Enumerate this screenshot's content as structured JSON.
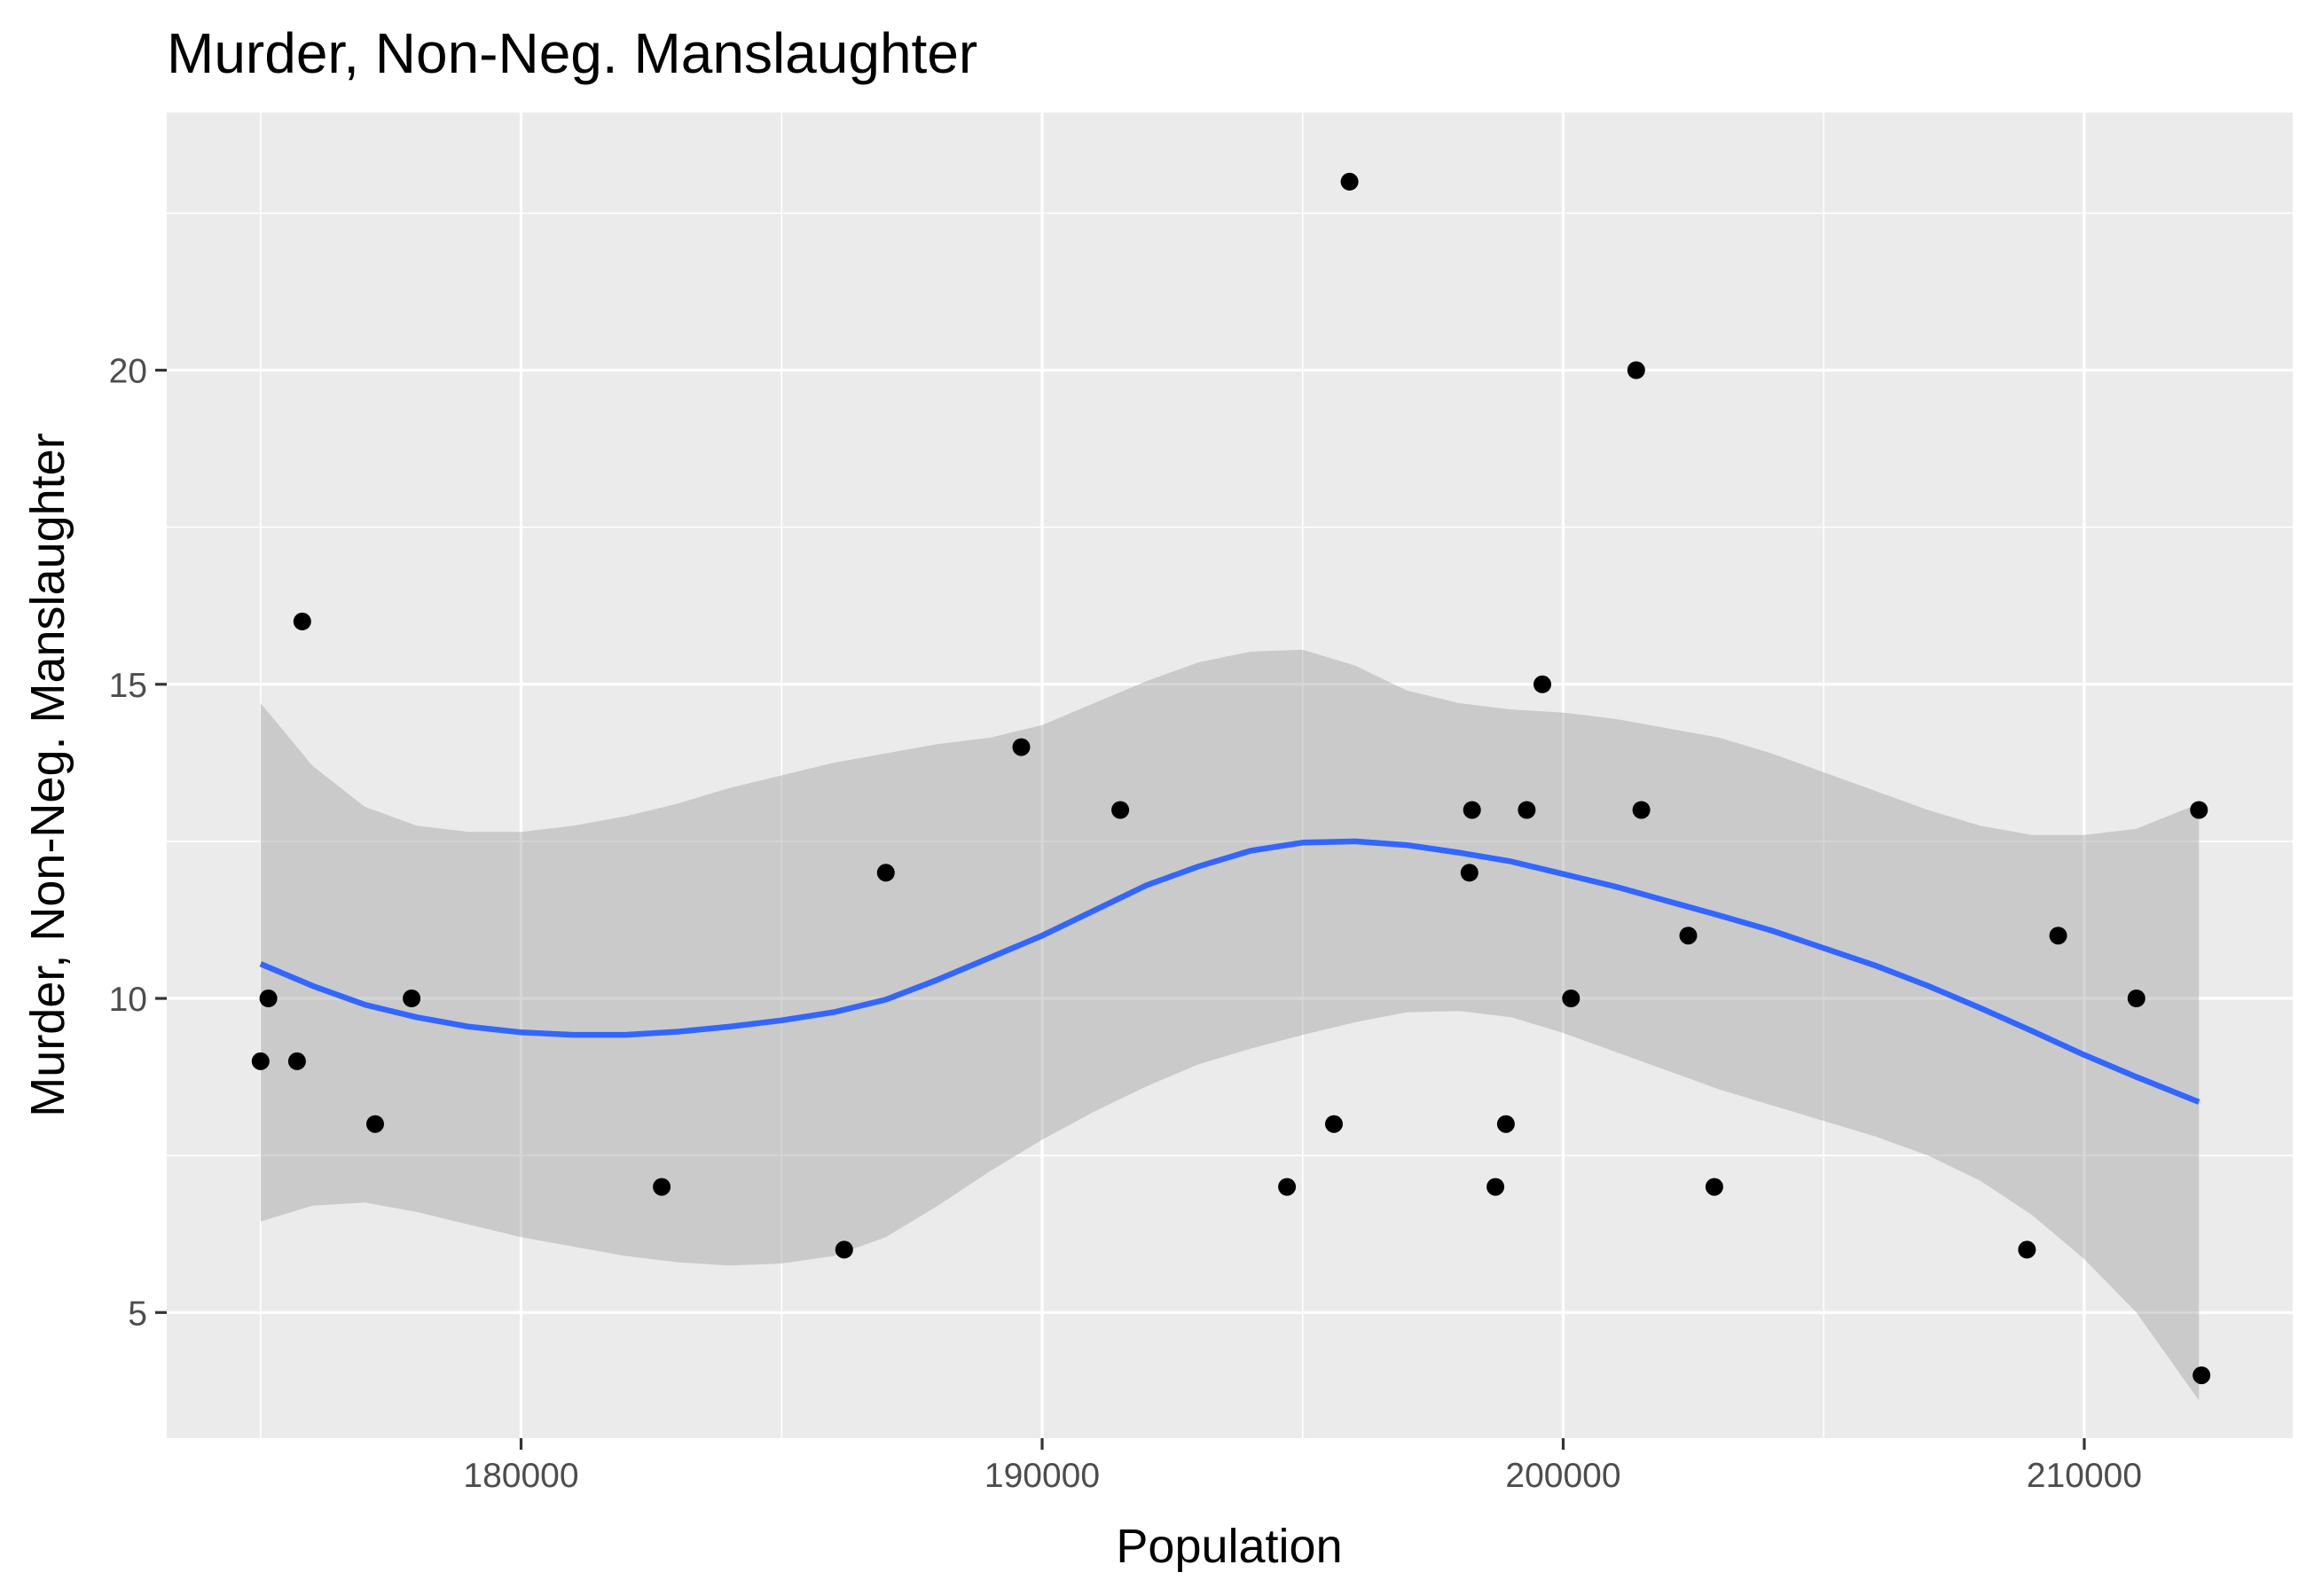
{
  "chart_data": {
    "type": "scatter",
    "title": "Murder, Non-Neg. Manslaughter",
    "xlabel": "Population",
    "ylabel": "Murder, Non-Neg. Manslaughter",
    "xlim": [
      173200,
      214000
    ],
    "ylim": [
      3.0,
      24.1
    ],
    "x_major_ticks": [
      180000,
      190000,
      200000,
      210000
    ],
    "x_tick_labels": [
      "180000",
      "190000",
      "200000",
      "210000"
    ],
    "x_minor_ticks": [
      175000,
      185000,
      195000,
      205000
    ],
    "y_major_ticks": [
      5,
      10,
      15,
      20
    ],
    "y_tick_labels": [
      "5",
      "10",
      "15",
      "20"
    ],
    "y_minor_ticks": [
      7.5,
      12.5,
      17.5,
      22.5
    ],
    "grid": true,
    "points": [
      {
        "x": 175000,
        "y": 9
      },
      {
        "x": 175150,
        "y": 10
      },
      {
        "x": 175700,
        "y": 9
      },
      {
        "x": 175800,
        "y": 16
      },
      {
        "x": 177200,
        "y": 8
      },
      {
        "x": 177900,
        "y": 10
      },
      {
        "x": 182700,
        "y": 7
      },
      {
        "x": 186200,
        "y": 6
      },
      {
        "x": 187000,
        "y": 12
      },
      {
        "x": 189600,
        "y": 14
      },
      {
        "x": 191500,
        "y": 13
      },
      {
        "x": 194700,
        "y": 7
      },
      {
        "x": 195600,
        "y": 8
      },
      {
        "x": 195900,
        "y": 23
      },
      {
        "x": 198200,
        "y": 12
      },
      {
        "x": 198250,
        "y": 13
      },
      {
        "x": 198700,
        "y": 7
      },
      {
        "x": 198900,
        "y": 8
      },
      {
        "x": 199300,
        "y": 13
      },
      {
        "x": 199600,
        "y": 15
      },
      {
        "x": 200150,
        "y": 10
      },
      {
        "x": 201400,
        "y": 20
      },
      {
        "x": 201500,
        "y": 13
      },
      {
        "x": 202400,
        "y": 11
      },
      {
        "x": 202900,
        "y": 7
      },
      {
        "x": 208900,
        "y": 6
      },
      {
        "x": 209500,
        "y": 11
      },
      {
        "x": 211000,
        "y": 10
      },
      {
        "x": 212200,
        "y": 13
      },
      {
        "x": 212250,
        "y": 4
      }
    ],
    "smooth": {
      "method": "loess",
      "color": "#3366ff",
      "fit": [
        {
          "x": 175000,
          "y": 10.55,
          "lo": 6.45,
          "hi": 14.7
        },
        {
          "x": 176000,
          "y": 10.2,
          "lo": 6.7,
          "hi": 13.7
        },
        {
          "x": 177000,
          "y": 9.9,
          "lo": 6.75,
          "hi": 13.05
        },
        {
          "x": 178000,
          "y": 9.7,
          "lo": 6.6,
          "hi": 12.75
        },
        {
          "x": 179000,
          "y": 9.55,
          "lo": 6.4,
          "hi": 12.65
        },
        {
          "x": 180000,
          "y": 9.46,
          "lo": 6.2,
          "hi": 12.65
        },
        {
          "x": 181000,
          "y": 9.42,
          "lo": 6.05,
          "hi": 12.75
        },
        {
          "x": 182000,
          "y": 9.42,
          "lo": 5.9,
          "hi": 12.9
        },
        {
          "x": 183000,
          "y": 9.47,
          "lo": 5.8,
          "hi": 13.1
        },
        {
          "x": 184000,
          "y": 9.55,
          "lo": 5.75,
          "hi": 13.35
        },
        {
          "x": 185000,
          "y": 9.65,
          "lo": 5.78,
          "hi": 13.55
        },
        {
          "x": 186000,
          "y": 9.78,
          "lo": 5.9,
          "hi": 13.75
        },
        {
          "x": 187000,
          "y": 9.98,
          "lo": 6.2,
          "hi": 13.9
        },
        {
          "x": 188000,
          "y": 10.3,
          "lo": 6.7,
          "hi": 14.05
        },
        {
          "x": 189000,
          "y": 10.65,
          "lo": 7.25,
          "hi": 14.15
        },
        {
          "x": 190000,
          "y": 11.0,
          "lo": 7.75,
          "hi": 14.35
        },
        {
          "x": 191000,
          "y": 11.4,
          "lo": 8.2,
          "hi": 14.7
        },
        {
          "x": 192000,
          "y": 11.8,
          "lo": 8.6,
          "hi": 15.05
        },
        {
          "x": 193000,
          "y": 12.1,
          "lo": 8.95,
          "hi": 15.35
        },
        {
          "x": 194000,
          "y": 12.35,
          "lo": 9.2,
          "hi": 15.52
        },
        {
          "x": 195000,
          "y": 12.48,
          "lo": 9.42,
          "hi": 15.55
        },
        {
          "x": 196000,
          "y": 12.5,
          "lo": 9.62,
          "hi": 15.3
        },
        {
          "x": 197000,
          "y": 12.44,
          "lo": 9.78,
          "hi": 14.9
        },
        {
          "x": 198000,
          "y": 12.32,
          "lo": 9.8,
          "hi": 14.7
        },
        {
          "x": 199000,
          "y": 12.18,
          "lo": 9.7,
          "hi": 14.6
        },
        {
          "x": 200000,
          "y": 11.98,
          "lo": 9.45,
          "hi": 14.55
        },
        {
          "x": 201000,
          "y": 11.78,
          "lo": 9.15,
          "hi": 14.45
        },
        {
          "x": 202000,
          "y": 11.55,
          "lo": 8.85,
          "hi": 14.3
        },
        {
          "x": 203000,
          "y": 11.32,
          "lo": 8.55,
          "hi": 14.15
        },
        {
          "x": 204000,
          "y": 11.08,
          "lo": 8.3,
          "hi": 13.9
        },
        {
          "x": 205000,
          "y": 10.8,
          "lo": 8.05,
          "hi": 13.6
        },
        {
          "x": 206000,
          "y": 10.52,
          "lo": 7.8,
          "hi": 13.3
        },
        {
          "x": 207000,
          "y": 10.2,
          "lo": 7.5,
          "hi": 13.0
        },
        {
          "x": 208000,
          "y": 9.85,
          "lo": 7.1,
          "hi": 12.75
        },
        {
          "x": 209000,
          "y": 9.48,
          "lo": 6.55,
          "hi": 12.6
        },
        {
          "x": 210000,
          "y": 9.1,
          "lo": 5.85,
          "hi": 12.6
        },
        {
          "x": 211000,
          "y": 8.75,
          "lo": 5.0,
          "hi": 12.7
        },
        {
          "x": 212200,
          "y": 8.35,
          "lo": 3.6,
          "hi": 13.1
        }
      ]
    }
  }
}
